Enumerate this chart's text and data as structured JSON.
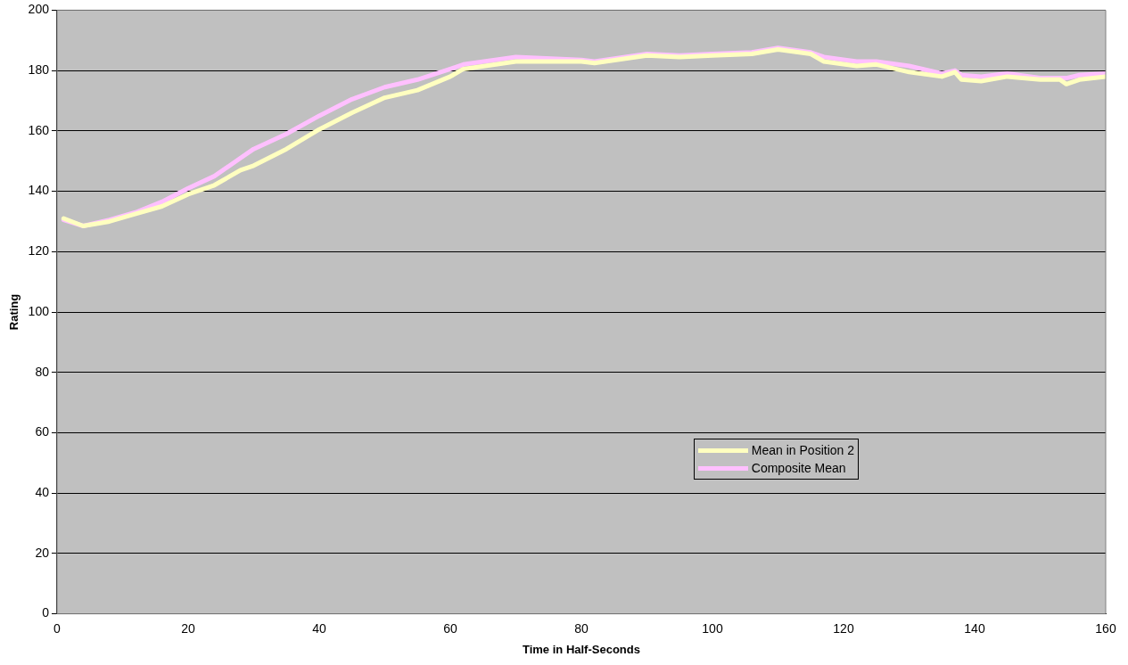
{
  "chart_data": {
    "type": "line",
    "xlabel": "Time in Half-Seconds",
    "ylabel": "Rating",
    "xlim": [
      0,
      160
    ],
    "xticks": [
      0,
      20,
      40,
      60,
      80,
      100,
      120,
      140,
      160
    ],
    "ylim": [
      0,
      200
    ],
    "yticks": [
      0,
      20,
      40,
      60,
      80,
      100,
      120,
      140,
      160,
      180,
      200
    ],
    "grid": "y",
    "legend": "bottom right",
    "marker": "none",
    "line_style": "solid",
    "series": [
      {
        "name": "Mean in Position 2",
        "color": "#ffffc0",
        "x": [
          1,
          4,
          8,
          12,
          16,
          20,
          24,
          28,
          30,
          35,
          40,
          45,
          50,
          55,
          60,
          62,
          70,
          80,
          82,
          90,
          95,
          100,
          106,
          110,
          115,
          117,
          122,
          125,
          130,
          135,
          137,
          138,
          141,
          145,
          150,
          153,
          154,
          156,
          160
        ],
        "values": [
          131,
          128.5,
          130,
          132.5,
          135,
          139,
          142,
          147,
          148.5,
          154,
          160.5,
          166,
          171,
          173.5,
          178,
          180.5,
          183,
          183,
          182.5,
          185,
          184.5,
          185,
          185.5,
          187,
          185.5,
          183,
          181.5,
          182,
          179.5,
          178,
          179.5,
          177,
          176.5,
          178,
          177,
          177,
          175.5,
          177,
          178
        ]
      },
      {
        "name": "Composite Mean",
        "color": "#ffc0ff",
        "x": [
          1,
          4,
          8,
          12,
          16,
          20,
          24,
          28,
          30,
          35,
          40,
          45,
          50,
          55,
          60,
          62,
          70,
          80,
          82,
          90,
          95,
          100,
          106,
          110,
          115,
          117,
          122,
          125,
          130,
          135,
          137,
          138,
          141,
          145,
          150,
          153,
          154,
          156,
          160
        ],
        "values": [
          130.5,
          128.5,
          130.5,
          133,
          136.5,
          141,
          145,
          151,
          154,
          159,
          165,
          170.5,
          174.5,
          177,
          180.5,
          182,
          184.5,
          183.5,
          183,
          185.5,
          185,
          185.5,
          186,
          187.5,
          186,
          184.5,
          183,
          183,
          181.5,
          179,
          180,
          178.5,
          178,
          179,
          177.5,
          177.5,
          177.5,
          178.5,
          179
        ]
      }
    ]
  }
}
